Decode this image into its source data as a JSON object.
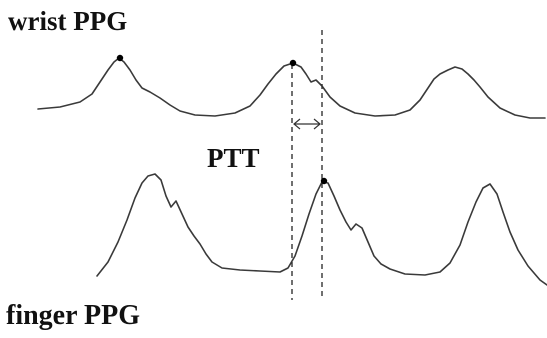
{
  "labels": {
    "wrist": "wrist PPG",
    "finger": "finger PPG",
    "ptt": "PTT"
  },
  "colors": {
    "waveform": "#3a3a3a",
    "markers": "#333333",
    "peak_dot": "#000000"
  }
}
